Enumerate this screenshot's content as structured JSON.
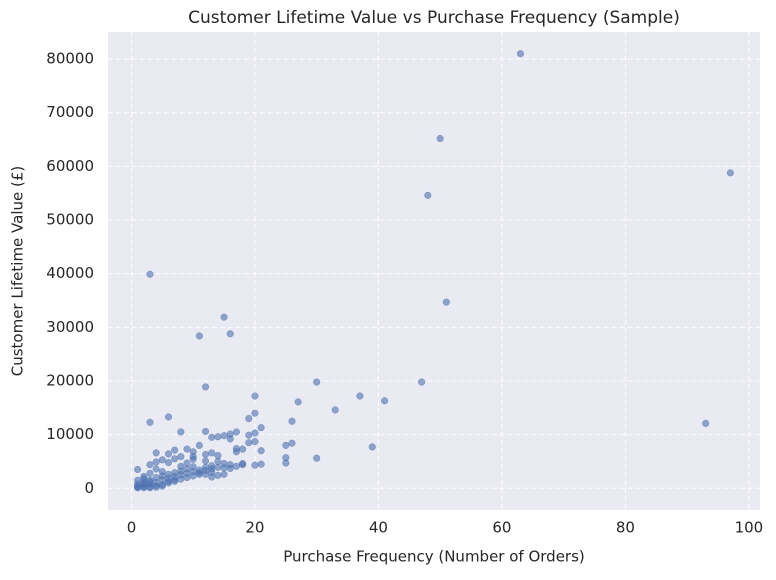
{
  "chart_data": {
    "type": "scatter",
    "title": "Customer Lifetime Value vs Purchase Frequency (Sample)",
    "x_label": "Purchase Frequency (Number of Orders)",
    "y_label": "Customer Lifetime Value (£)",
    "color": "#4c72b0",
    "grid": true,
    "xlim": [
      -3.8,
      101.8
    ],
    "ylim": [
      -4050,
      85050
    ],
    "xticks": [
      0,
      20,
      40,
      60,
      80,
      100
    ],
    "yticks": [
      0,
      10000,
      20000,
      30000,
      40000,
      50000,
      60000,
      70000,
      80000
    ],
    "x": [
      63,
      50,
      97,
      48,
      3,
      51,
      15,
      16,
      11,
      30,
      47,
      12,
      20,
      37,
      41,
      27,
      33,
      20,
      6,
      19,
      3,
      26,
      93,
      21,
      8,
      12,
      17,
      20,
      16,
      15,
      14,
      16,
      20,
      26,
      25,
      39,
      19,
      18,
      21,
      25,
      30,
      25,
      21,
      17,
      13,
      11,
      9,
      10,
      7,
      4,
      6,
      8,
      4,
      12,
      14,
      15,
      13,
      10,
      9,
      11,
      12,
      16,
      18,
      15,
      8,
      7,
      6,
      5,
      4,
      3,
      2,
      1,
      1,
      1,
      2,
      2,
      3,
      3,
      4,
      5,
      6,
      7,
      8,
      9,
      10,
      12,
      13,
      14,
      5,
      3,
      2,
      1,
      1,
      2,
      4,
      6,
      5,
      3,
      7,
      8,
      9,
      10,
      11,
      12,
      13,
      14,
      16,
      17,
      20,
      6,
      7,
      8,
      4,
      5,
      3,
      2,
      1,
      2,
      3,
      4,
      5,
      6,
      7,
      9,
      10,
      11,
      13,
      15,
      17,
      18,
      19,
      13,
      10,
      12,
      14
    ],
    "y": [
      81000,
      65200,
      58800,
      54600,
      39900,
      34700,
      31900,
      28800,
      28400,
      19800,
      19800,
      18900,
      17200,
      17200,
      16300,
      16100,
      14600,
      14000,
      13300,
      13000,
      12300,
      12500,
      12100,
      11300,
      10500,
      10600,
      10500,
      10300,
      10100,
      9800,
      9600,
      9200,
      8700,
      8400,
      8000,
      7700,
      8500,
      7300,
      7000,
      5700,
      5600,
      4700,
      4500,
      6800,
      6600,
      8000,
      7300,
      6800,
      7100,
      6600,
      6400,
      5900,
      4900,
      5100,
      5000,
      4600,
      4200,
      4000,
      3600,
      3400,
      3900,
      4400,
      4600,
      3800,
      3200,
      2900,
      2600,
      2300,
      2000,
      1500,
      1200,
      800,
      400,
      200,
      300,
      600,
      800,
      300,
      1100,
      1600,
      1900,
      2200,
      2500,
      2800,
      3100,
      3300,
      3600,
      3900,
      3100,
      2800,
      2200,
      1500,
      3500,
      1800,
      3600,
      4800,
      5300,
      4400,
      5500,
      4100,
      4700,
      5400,
      2900,
      2600,
      3000,
      2400,
      3700,
      4100,
      4300,
      1000,
      1300,
      1700,
      500,
      700,
      1200,
      900,
      100,
      100,
      100,
      200,
      400,
      1300,
      1600,
      2000,
      2300,
      2600,
      2100,
      2600,
      7400,
      4400,
      9900,
      9500,
      5900,
      6300,
      6100
    ]
  }
}
